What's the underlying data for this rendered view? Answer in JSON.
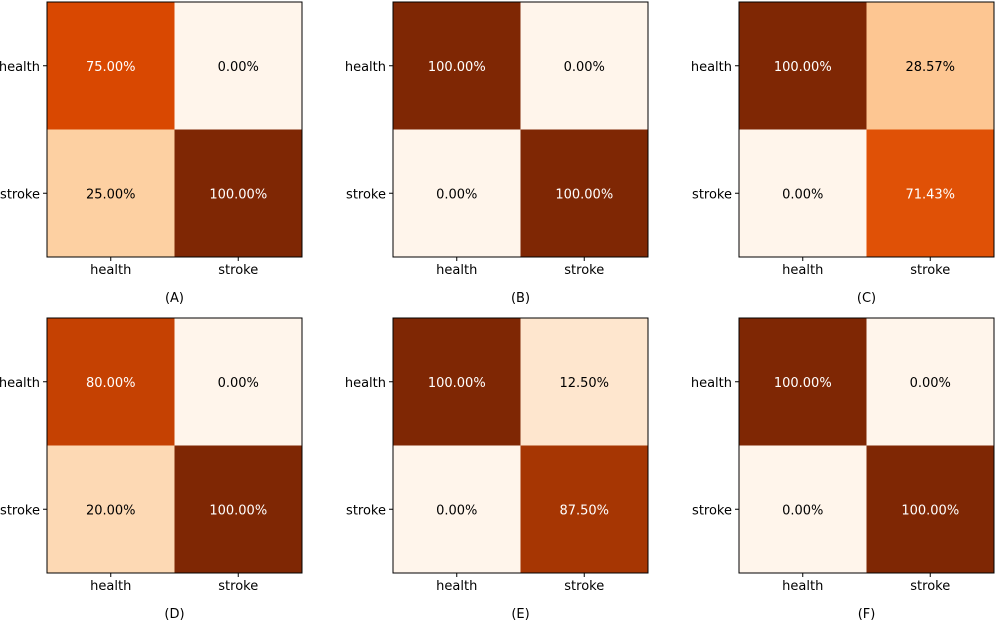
{
  "chart_data": [
    {
      "type": "heatmap",
      "panel_label": "(A)",
      "row_labels": [
        "health",
        "stroke"
      ],
      "col_labels": [
        "health",
        "stroke"
      ],
      "values": [
        [
          75.0,
          0.0
        ],
        [
          25.0,
          100.0
        ]
      ],
      "cell_text": [
        [
          "75.00%",
          "0.00%"
        ],
        [
          "25.00%",
          "100.00%"
        ]
      ]
    },
    {
      "type": "heatmap",
      "panel_label": "(B)",
      "row_labels": [
        "health",
        "stroke"
      ],
      "col_labels": [
        "health",
        "stroke"
      ],
      "values": [
        [
          100.0,
          0.0
        ],
        [
          0.0,
          100.0
        ]
      ],
      "cell_text": [
        [
          "100.00%",
          "0.00%"
        ],
        [
          "0.00%",
          "100.00%"
        ]
      ]
    },
    {
      "type": "heatmap",
      "panel_label": "(C)",
      "row_labels": [
        "health",
        "stroke"
      ],
      "col_labels": [
        "health",
        "stroke"
      ],
      "values": [
        [
          100.0,
          28.57
        ],
        [
          0.0,
          71.43
        ]
      ],
      "cell_text": [
        [
          "100.00%",
          "28.57%"
        ],
        [
          "0.00%",
          "71.43%"
        ]
      ]
    },
    {
      "type": "heatmap",
      "panel_label": "(D)",
      "row_labels": [
        "health",
        "stroke"
      ],
      "col_labels": [
        "health",
        "stroke"
      ],
      "values": [
        [
          80.0,
          0.0
        ],
        [
          20.0,
          100.0
        ]
      ],
      "cell_text": [
        [
          "80.00%",
          "0.00%"
        ],
        [
          "20.00%",
          "100.00%"
        ]
      ]
    },
    {
      "type": "heatmap",
      "panel_label": "(E)",
      "row_labels": [
        "health",
        "stroke"
      ],
      "col_labels": [
        "health",
        "stroke"
      ],
      "values": [
        [
          100.0,
          12.5
        ],
        [
          0.0,
          87.5
        ]
      ],
      "cell_text": [
        [
          "100.00%",
          "12.50%"
        ],
        [
          "0.00%",
          "87.50%"
        ]
      ]
    },
    {
      "type": "heatmap",
      "panel_label": "(F)",
      "row_labels": [
        "health",
        "stroke"
      ],
      "col_labels": [
        "health",
        "stroke"
      ],
      "values": [
        [
          100.0,
          0.0
        ],
        [
          0.0,
          100.0
        ]
      ],
      "cell_text": [
        [
          "100.00%",
          "0.00%"
        ],
        [
          "0.00%",
          "100.00%"
        ]
      ]
    }
  ],
  "colormap": {
    "name": "Oranges",
    "value_range": [
      0,
      100
    ],
    "stops": [
      [
        0.0,
        "#fff5eb"
      ],
      [
        0.125,
        "#fee6ce"
      ],
      [
        0.25,
        "#fdd0a2"
      ],
      [
        0.375,
        "#fdae6b"
      ],
      [
        0.5,
        "#fd8d3c"
      ],
      [
        0.625,
        "#f16913"
      ],
      [
        0.75,
        "#d94801"
      ],
      [
        0.875,
        "#a63603"
      ],
      [
        1.0,
        "#7f2704"
      ]
    ],
    "dark_text_color": "#000000",
    "light_text_color": "#ffffff"
  }
}
